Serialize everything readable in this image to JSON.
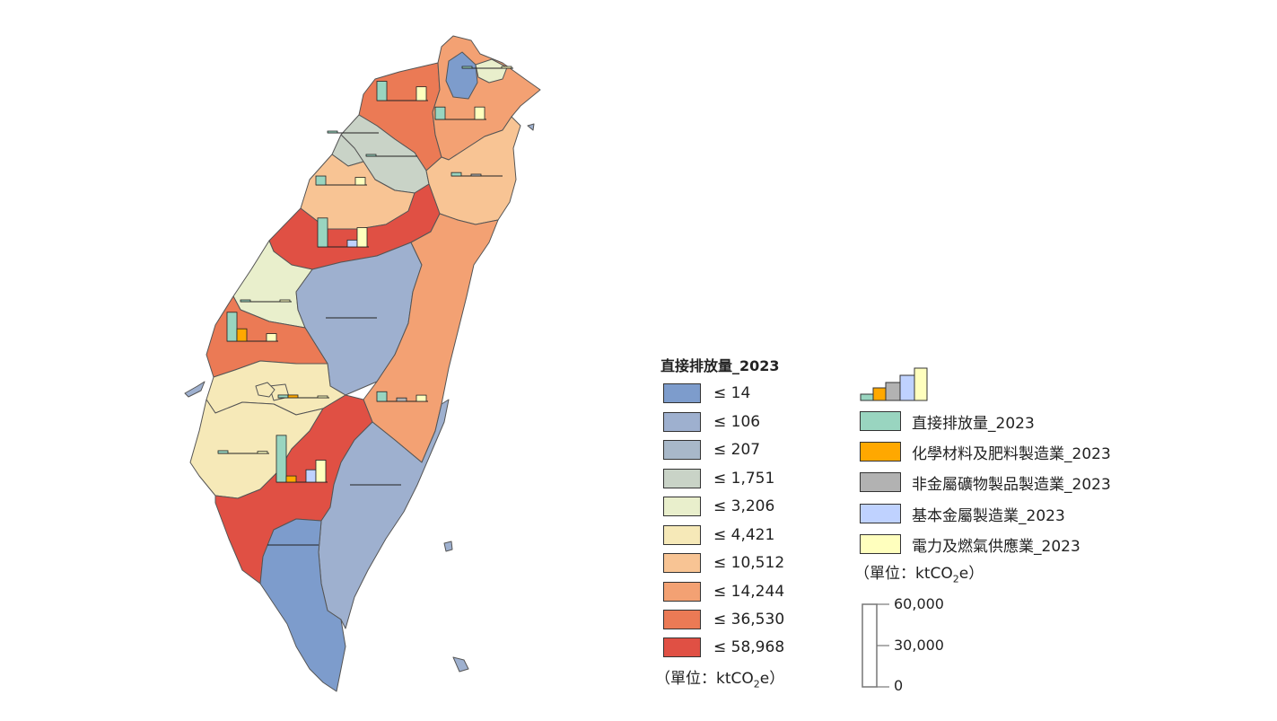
{
  "legend_choropleth": {
    "title": "直接排放量_2023",
    "classes": [
      {
        "label": "≤ 14",
        "color": "#7d9ccc"
      },
      {
        "label": "≤ 106",
        "color": "#9eb0cf"
      },
      {
        "label": "≤ 207",
        "color": "#a8b8c9"
      },
      {
        "label": "≤ 1,751",
        "color": "#c9d3c7"
      },
      {
        "label": "≤ 3,206",
        "color": "#e9efcc"
      },
      {
        "label": "≤ 4,421",
        "color": "#f6e9b8"
      },
      {
        "label": "≤ 10,512",
        "color": "#f8c494"
      },
      {
        "label": "≤ 14,244",
        "color": "#f3a173"
      },
      {
        "label": "≤ 36,530",
        "color": "#eb7a55"
      },
      {
        "label": "≤ 58,968",
        "color": "#e05044"
      }
    ],
    "unit_prefix": "（單位：ktCO",
    "unit_sub": "2",
    "unit_suffix": "e）"
  },
  "legend_bars": {
    "series": [
      {
        "label": "直接排放量_2023",
        "color": "#99d5c0"
      },
      {
        "label": "化學材料及肥料製造業_2023",
        "color": "#ffa800"
      },
      {
        "label": "非金屬礦物製品製造業_2023",
        "color": "#b2b2b2"
      },
      {
        "label": "基本金屬製造業_2023",
        "color": "#bfd2ff"
      },
      {
        "label": "電力及燃氣供應業_2023",
        "color": "#ffffbe"
      }
    ],
    "unit_prefix": "（單位：ktCO",
    "unit_sub": "2",
    "unit_suffix": "e）",
    "scale_labels": [
      "60,000",
      "30,000",
      "0"
    ]
  },
  "map": {
    "outline_color": "#555555",
    "region_colors": {
      "taipei": "#7d9ccc",
      "keelung": "#e9efcc",
      "new_taipei": "#f3a173",
      "taoyuan": "#eb7a55",
      "hsinchu_county": "#c9d3c7",
      "hsinchu_city": "#c9d3c7",
      "miaoli": "#f8c494",
      "yilan": "#f8c494",
      "taichung": "#e05044",
      "changhua": "#e9efcc",
      "nantou": "#9eb0cf",
      "hualien": "#f3a173",
      "yunlin": "#eb7a55",
      "chiayi_county": "#f6e9b8",
      "chiayi_city": "#f6e9b8",
      "tainan": "#f6e9b8",
      "kaohsiung": "#e05044",
      "taitung": "#9eb0cf",
      "pingtung": "#7d9ccc",
      "penghu": "#f6e9b8",
      "islands": "#9eb0cf"
    },
    "scale_max": 60000,
    "bar_groups": [
      {
        "name": "taoyuan-bars",
        "values": [
          14000,
          0,
          0,
          0,
          10000
        ]
      },
      {
        "name": "new-taipei-bars",
        "values": [
          9000,
          0,
          0,
          0,
          9000
        ]
      },
      {
        "name": "keelung-bars",
        "values": [
          500,
          0,
          0,
          0,
          500
        ]
      },
      {
        "name": "hsinchu-county-bars",
        "values": [
          300,
          0,
          0,
          0,
          0
        ]
      },
      {
        "name": "hsinchu-city-bars",
        "values": [
          300,
          0,
          0,
          0,
          0
        ]
      },
      {
        "name": "miaoli-bars",
        "values": [
          6500,
          0,
          0,
          0,
          5500
        ]
      },
      {
        "name": "yilan-bars",
        "values": [
          2500,
          0,
          1200,
          0,
          0
        ]
      },
      {
        "name": "taichung-bars",
        "values": [
          21000,
          0,
          0,
          5000,
          14000
        ]
      },
      {
        "name": "changhua-bars",
        "values": [
          1200,
          0,
          0,
          0,
          1200
        ]
      },
      {
        "name": "nantou-bars",
        "values": [
          0,
          0,
          0,
          0,
          0
        ]
      },
      {
        "name": "yunlin-bars",
        "values": [
          21000,
          9000,
          0,
          0,
          5500
        ]
      },
      {
        "name": "hualien-bars",
        "values": [
          7000,
          0,
          2500,
          0,
          4500
        ]
      },
      {
        "name": "chiayi-city-bars",
        "values": [
          2000,
          2000,
          0,
          0,
          1000
        ]
      },
      {
        "name": "chiayi-county-bars",
        "values": [
          2000,
          0,
          0,
          0,
          1500
        ]
      },
      {
        "name": "kaohsiung-bars",
        "values": [
          34000,
          4500,
          0,
          9000,
          16000
        ]
      },
      {
        "name": "taitung-bars",
        "values": [
          0,
          0,
          0,
          0,
          0
        ]
      },
      {
        "name": "pingtung-bars",
        "values": [
          0,
          0,
          0,
          0,
          0
        ]
      }
    ]
  }
}
